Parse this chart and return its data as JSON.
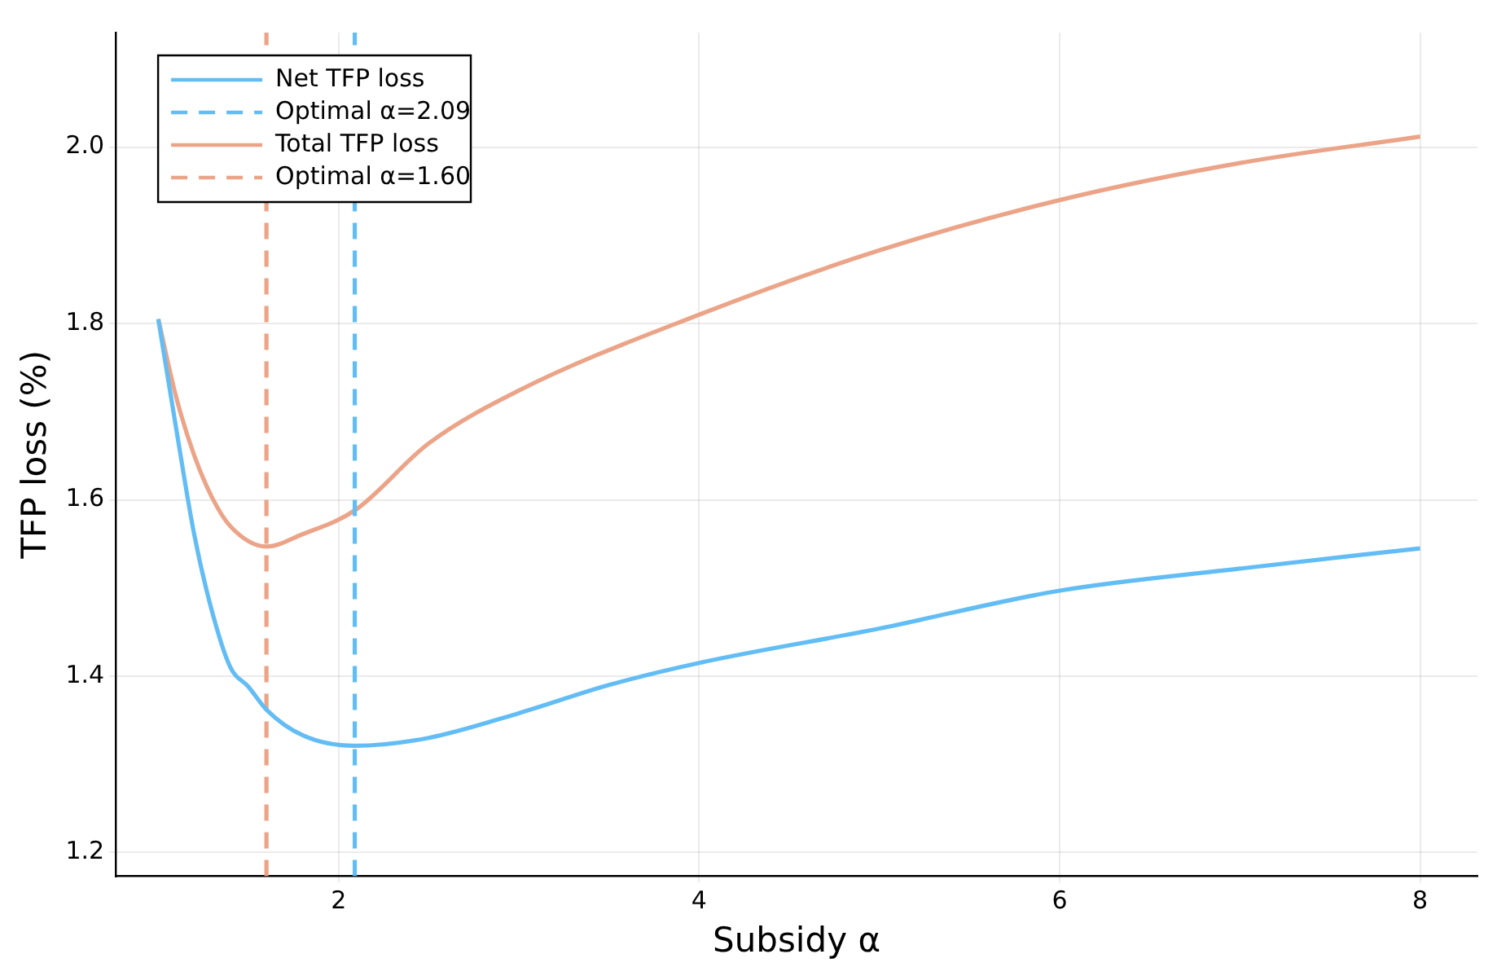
{
  "chart_data": {
    "type": "line",
    "xlabel": "Subsidy α",
    "ylabel": "TFP loss (%)",
    "xlim": [
      0.764,
      8.318
    ],
    "xticks": [
      2,
      4,
      6,
      8
    ],
    "ylim": [
      1.173,
      2.13
    ],
    "yticks": [
      {
        "value": 1.2,
        "label": "1.2"
      },
      {
        "value": 1.4,
        "label": "1.4"
      },
      {
        "value": 1.6,
        "label": "1.6"
      },
      {
        "value": 1.8,
        "label": "1.8"
      },
      {
        "value": 2,
        "label": "2.0"
      }
    ],
    "grid": true,
    "legend": "top left",
    "marker": "none",
    "line_style": "solid",
    "series": [
      {
        "name": "Net TFP loss",
        "color": "#63bdf5",
        "x": [
          1,
          1.1,
          1.2,
          1.3,
          1.4,
          1.5,
          1.6,
          1.8,
          2.09,
          2.5,
          3,
          3.5,
          4,
          5,
          6,
          7,
          8
        ],
        "values": [
          1.805,
          1.68,
          1.56,
          1.472,
          1.41,
          1.388,
          1.362,
          1.333,
          1.321,
          1.33,
          1.358,
          1.39,
          1.415,
          1.454,
          1.497,
          1.522,
          1.545
        ]
      },
      {
        "name": "Total TFP loss",
        "color": "#eba488",
        "x": [
          1,
          1.1,
          1.2,
          1.3,
          1.4,
          1.6,
          1.8,
          2.09,
          2.5,
          3,
          4,
          5,
          6,
          7,
          8
        ],
        "values": [
          1.805,
          1.716,
          1.65,
          1.602,
          1.57,
          1.547,
          1.561,
          1.588,
          1.664,
          1.724,
          1.81,
          1.883,
          1.94,
          1.982,
          2.012
        ]
      }
    ],
    "ref_lines": [
      {
        "axis": "x",
        "value": 2.09,
        "label": "Optimal α=2.09",
        "color": "#63bdf5",
        "line_style": "dashed"
      },
      {
        "axis": "x",
        "value": 1.6,
        "label": "Optimal α=1.60",
        "color": "#eba488",
        "line_style": "dashed"
      }
    ]
  }
}
